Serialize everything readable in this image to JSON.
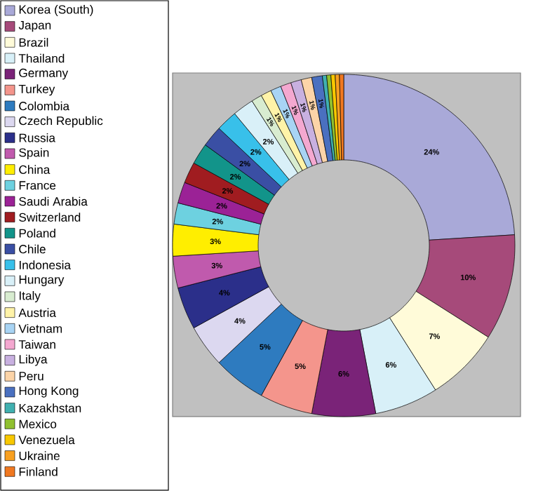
{
  "chart_data": {
    "type": "donut",
    "legend": "left",
    "categories": [
      "Korea (South)",
      "Japan",
      "Brazil",
      "Thailand",
      "Germany",
      "Turkey",
      "Colombia",
      "Czech Republic",
      "Russia",
      "Spain",
      "China",
      "France",
      "Saudi Arabia",
      "Switzerland",
      "Poland",
      "Chile",
      "Indonesia",
      "Hungary",
      "Italy",
      "Austria",
      "Vietnam",
      "Taiwan",
      "Libya",
      "Peru",
      "Hong Kong",
      "Kazakhstan",
      "Mexico",
      "Venezuela",
      "Ukraine",
      "Finland"
    ],
    "values": [
      24,
      10,
      7,
      6,
      6,
      5,
      5,
      4,
      4,
      3,
      3,
      2,
      2,
      2,
      2,
      2,
      2,
      2,
      1,
      1,
      1,
      1,
      1,
      1,
      1,
      0.4,
      0.4,
      0.4,
      0.4,
      0.4
    ],
    "value_labels": [
      "24%",
      "10%",
      "7%",
      "6%",
      "6%",
      "5%",
      "5%",
      "4%",
      "4%",
      "3%",
      "3%",
      "2%",
      "2%",
      "2%",
      "2%",
      "2%",
      "2%",
      "2%",
      "1%",
      "1%",
      "1%",
      "1%",
      "1%",
      "1%",
      "1%",
      null,
      null,
      null,
      null,
      null
    ],
    "colors": [
      "#a9a9d8",
      "#a64a7a",
      "#fffbd9",
      "#d8f0f8",
      "#7a2378",
      "#f4958c",
      "#2e7bbf",
      "#dcd8f0",
      "#2b2f8a",
      "#c05aad",
      "#ffee00",
      "#6dd1e0",
      "#9b2296",
      "#a01c20",
      "#12948a",
      "#3a4fa4",
      "#38c0ea",
      "#d9f0f8",
      "#d8ecd0",
      "#fff3a8",
      "#a8d4f4",
      "#f4a8d0",
      "#c8b0e0",
      "#fcd4a8",
      "#4a70c0",
      "#40b0b0",
      "#90c030",
      "#f8c800",
      "#f8a020",
      "#f07820"
    ]
  }
}
